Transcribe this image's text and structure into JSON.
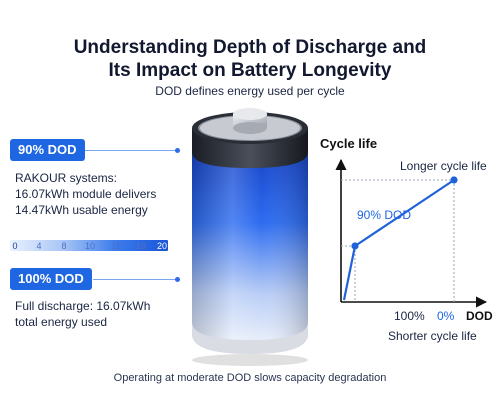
{
  "header": {
    "title_line1": "Understanding Depth of Discharge and",
    "title_line2": "Its Impact on Battery Longevity",
    "subtitle": "DOD defines energy used per cycle"
  },
  "callouts": [
    {
      "badge": "90% DOD",
      "text_line1": "RAKOUR systems:",
      "text_line2": "16.07kWh module delivers",
      "text_line3": "14.47kWh usable energy"
    },
    {
      "badge": "100% DOD",
      "text_line1": "Full discharge: 16.07kWh",
      "text_line2": "total energy used"
    }
  ],
  "scale": {
    "labels": [
      "0",
      "4",
      "8",
      "10",
      "12",
      "18",
      "20"
    ]
  },
  "chart_data": {
    "type": "line",
    "ylabel": "Cycle life",
    "xlabel": "DOD",
    "x_ticks": [
      "100%",
      "0%"
    ],
    "points": [
      {
        "x": 100,
        "y": 0
      },
      {
        "x": 90,
        "y": 0.45
      },
      {
        "x": 0,
        "y": 1
      }
    ],
    "annotations": {
      "top": "Longer cycle life",
      "mid": "90% DOD",
      "bottom": "Shorter cycle life"
    },
    "colors": {
      "line": "#1f62d9",
      "axis": "#111111",
      "guide": "#9aa3b5"
    }
  },
  "footer": "Operating at moderate DOD slows capacity degradation",
  "colors": {
    "accent": "#1f66e3"
  }
}
